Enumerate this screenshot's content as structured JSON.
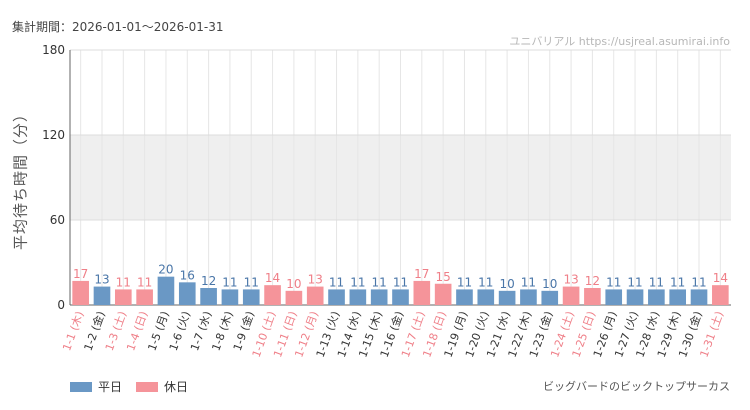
{
  "header": {
    "period_label": "集計期間：2026-01-01〜2026-01-31",
    "site": "ユニバリアル  https://usjreal.asumirai.info"
  },
  "colors": {
    "weekday": "#6a98c5",
    "holiday": "#f5949a",
    "weekday_label": "#4a76a8",
    "holiday_label": "#ef7f88",
    "band": "#efefef",
    "grid": "#e6e6e6"
  },
  "legend": {
    "weekday": "平日",
    "holiday": "休日"
  },
  "footnote": "ビッグバードのビックトップサーカス",
  "chart_data": {
    "type": "bar",
    "ylabel": "平均待ち時間（分）",
    "ylim": [
      0,
      180
    ],
    "yticks": [
      60,
      120,
      180
    ],
    "shaded_band": [
      60,
      120
    ],
    "grid": true,
    "legend_position": "bottom-left",
    "categories": [
      "1-1 (木)",
      "1-2 (金)",
      "1-3 (土)",
      "1-4 (日)",
      "1-5 (月)",
      "1-6 (火)",
      "1-7 (水)",
      "1-8 (木)",
      "1-9 (金)",
      "1-10 (土)",
      "1-11 (日)",
      "1-12 (月)",
      "1-13 (火)",
      "1-14 (水)",
      "1-15 (木)",
      "1-16 (金)",
      "1-17 (土)",
      "1-18 (日)",
      "1-19 (月)",
      "1-20 (火)",
      "1-21 (水)",
      "1-22 (木)",
      "1-23 (金)",
      "1-24 (土)",
      "1-25 (日)",
      "1-26 (月)",
      "1-27 (火)",
      "1-28 (水)",
      "1-29 (木)",
      "1-30 (金)",
      "1-31 (土)"
    ],
    "values": [
      17,
      13,
      11,
      11,
      20,
      16,
      12,
      11,
      11,
      14,
      10,
      13,
      11,
      11,
      11,
      11,
      17,
      15,
      11,
      11,
      10,
      11,
      10,
      13,
      12,
      11,
      11,
      11,
      11,
      11,
      14
    ],
    "holiday": [
      true,
      false,
      true,
      true,
      false,
      false,
      false,
      false,
      false,
      true,
      true,
      true,
      false,
      false,
      false,
      false,
      true,
      true,
      false,
      false,
      false,
      false,
      false,
      true,
      true,
      false,
      false,
      false,
      false,
      false,
      true
    ]
  }
}
